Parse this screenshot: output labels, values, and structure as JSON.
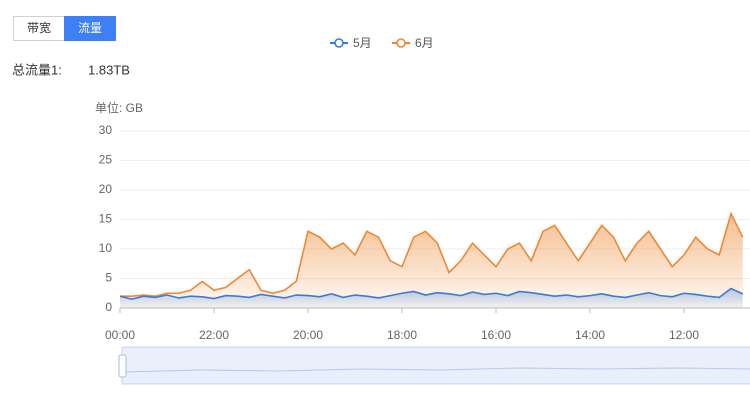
{
  "tabs": [
    "带宽",
    "流量"
  ],
  "total_label": "总流量1:",
  "total_value": "1.83TB",
  "chart_data": {
    "type": "line",
    "y_unit_label": "单位: GB",
    "categories": [
      "00:00",
      null,
      null,
      null,
      null,
      null,
      null,
      null,
      "22:00",
      null,
      null,
      null,
      null,
      null,
      null,
      null,
      "20:00",
      null,
      null,
      null,
      null,
      null,
      null,
      null,
      "18:00",
      null,
      null,
      null,
      null,
      null,
      null,
      null,
      "16:00",
      null,
      null,
      null,
      null,
      null,
      null,
      null,
      "14:00",
      null,
      null,
      null,
      null,
      null,
      null,
      null,
      "12:00",
      null,
      null,
      null,
      null,
      null
    ],
    "series": [
      {
        "name": "5月",
        "color": "#3a7bd5",
        "values": [
          2,
          1.5,
          2,
          1.8,
          2.2,
          1.7,
          2,
          1.9,
          1.6,
          2.1,
          2,
          1.8,
          2.3,
          2,
          1.7,
          2.2,
          2.1,
          1.9,
          2.4,
          1.8,
          2.2,
          2,
          1.7,
          2.1,
          2.5,
          2.8,
          2.2,
          2.6,
          2.4,
          2.1,
          2.7,
          2.3,
          2.5,
          2.1,
          2.8,
          2.6,
          2.3,
          2,
          2.2,
          1.9,
          2.1,
          2.4,
          2,
          1.8,
          2.2,
          2.6,
          2.1,
          1.9,
          2.5,
          2.3,
          2,
          1.8,
          3.3,
          2.4
        ]
      },
      {
        "name": "6月",
        "color": "#ee8833",
        "values": [
          2,
          2,
          2.2,
          2,
          2.5,
          2.5,
          3,
          4.5,
          3,
          3.5,
          5,
          6.5,
          3,
          2.5,
          3,
          4.5,
          13,
          12,
          10,
          11,
          9,
          13,
          12,
          8,
          7,
          12,
          13,
          11,
          6,
          8,
          11,
          9,
          7,
          10,
          11,
          8,
          13,
          14,
          11,
          8,
          11,
          14,
          12,
          8,
          11,
          13,
          10,
          7,
          9,
          12,
          10,
          9,
          16,
          12
        ]
      }
    ],
    "ylim": [
      0,
      30
    ],
    "yticks": [
      0,
      5,
      10,
      15,
      20,
      25,
      30
    ],
    "grid": true
  }
}
